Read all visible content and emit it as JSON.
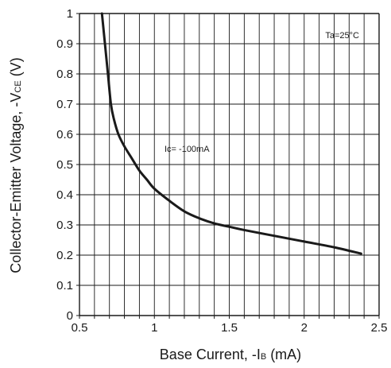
{
  "chart_data": {
    "type": "line",
    "xlabel": {
      "prefix": "Base Current, -I",
      "sub": "B",
      "suffix": " (mA)"
    },
    "ylabel": {
      "prefix": "Collector-Emitter Voltage, -V",
      "sub": "CE",
      "suffix": " (V)"
    },
    "xlim": [
      0.5,
      2.5
    ],
    "ylim": [
      0,
      1
    ],
    "x_ticks": [
      "0.5",
      "1",
      "1.5",
      "2",
      "2.5"
    ],
    "y_ticks": [
      "0",
      "0.1",
      "0.2",
      "0.3",
      "0.4",
      "0.5",
      "0.6",
      "0.7",
      "0.8",
      "0.9",
      "1"
    ],
    "x_minor_step": 0.1,
    "y_minor_step": 0.1,
    "grid": true,
    "annotations": {
      "condition": "Ta=25°C",
      "curve_label": "Ic= -100mA"
    },
    "series": [
      {
        "x": [
          0.65,
          0.67,
          0.69,
          0.71,
          0.73,
          0.76,
          0.8,
          0.85,
          0.9,
          0.95,
          1.0,
          1.1,
          1.2,
          1.3,
          1.4,
          1.5,
          1.6,
          1.8,
          2.0,
          2.2,
          2.38
        ],
        "y": [
          1.0,
          0.9,
          0.8,
          0.7,
          0.65,
          0.6,
          0.56,
          0.52,
          0.48,
          0.45,
          0.42,
          0.38,
          0.345,
          0.322,
          0.305,
          0.294,
          0.283,
          0.264,
          0.245,
          0.226,
          0.205
        ]
      }
    ],
    "colors": {
      "line": "#1a1a1a",
      "grid": "#1a1a1a",
      "background": "#ffffff"
    }
  }
}
